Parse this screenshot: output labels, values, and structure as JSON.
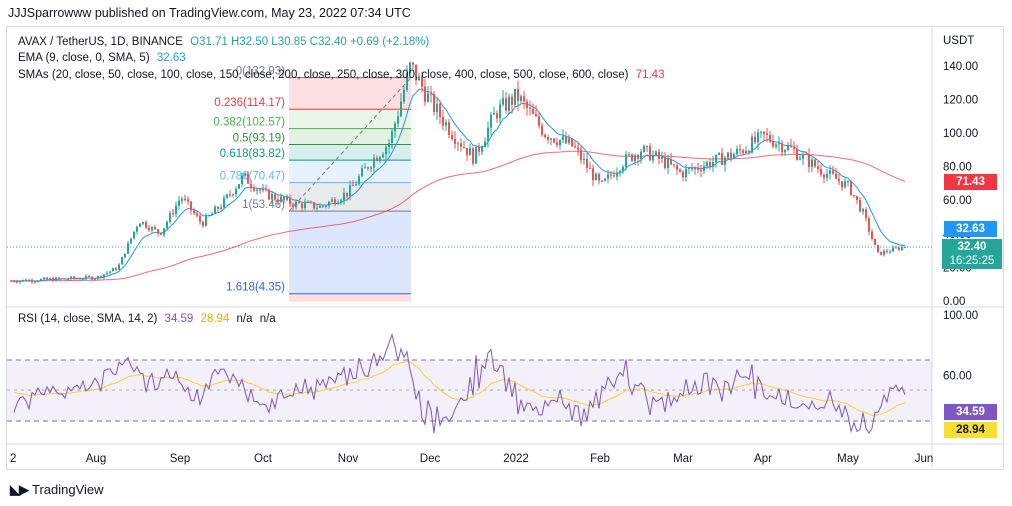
{
  "header": {
    "publisher_text": "JJJSparrowww published on TradingView.com, May 23, 2022 07:34 UTC"
  },
  "legend": {
    "symbol": "AVAX / TetherUS, 1D, BINANCE",
    "ohlc": "O31.71 H32.50 L30.85 C32.40 +0.69 (+2.18%)",
    "ema_label": "EMA (9, close, 0, SMA, 5)",
    "ema_value": "32.63",
    "sma_label": "SMAs (20, close, 50, close, 100, close, 150, close, 200, close, 250, close, 300, close, 400, close, 500, close, 600, close)",
    "sma_value": "71.43",
    "rsi_label": "RSI (14, close, SMA, 14, 2)",
    "rsi_value": "34.59",
    "rsi_sma_value": "28.94",
    "rsi_na1": "n/a",
    "rsi_na2": "n/a"
  },
  "axis": {
    "currency": "USDT",
    "price_ticks": [
      "140.00",
      "120.00",
      "100.00",
      "80.00",
      "60.00",
      "40.00",
      "20.00",
      "0.00"
    ],
    "rsi_ticks": [
      "100.00",
      "60.00"
    ],
    "time_ticks": [
      "2",
      "Aug",
      "Sep",
      "Oct",
      "Nov",
      "Dec",
      "2022",
      "Feb",
      "Mar",
      "Apr",
      "May",
      "Jun"
    ]
  },
  "badges": {
    "sma": "71.43",
    "ema": "32.63",
    "price": "32.40",
    "countdown": "16:25:25",
    "rsi": "34.59",
    "rsi_sma": "28.94"
  },
  "fib_labels": [
    {
      "text": "0(132.93)",
      "color": "#787b86"
    },
    {
      "text": "0.236(114.17)",
      "color": "#f23645"
    },
    {
      "text": "0.382(102.57)",
      "color": "#4caf50"
    },
    {
      "text": "0.5(93.19)",
      "color": "#388e3c"
    },
    {
      "text": "0.618(83.82)",
      "color": "#089981"
    },
    {
      "text": "0.786(70.47)",
      "color": "#64b5f6"
    },
    {
      "text": "1(53.46)",
      "color": "#787b86"
    },
    {
      "text": "1.618(4.35)",
      "color": "#2962ff"
    }
  ],
  "footer": {
    "brand": "TradingView"
  },
  "colors": {
    "up": "#26a69a",
    "down": "#ef5350",
    "ema": "#2196f3",
    "sma": "#f23645",
    "rsi": "#7e57c2",
    "rsi_sma": "#f7d038"
  },
  "chart_data": [
    {
      "type": "candlestick",
      "title": "AVAX / TetherUS, 1D, BINANCE",
      "ylabel": "USDT",
      "ylim": [
        0,
        145
      ],
      "fib_levels": [
        {
          "ratio": 0,
          "price": 132.93
        },
        {
          "ratio": 0.236,
          "price": 114.17
        },
        {
          "ratio": 0.382,
          "price": 102.57
        },
        {
          "ratio": 0.5,
          "price": 93.19
        },
        {
          "ratio": 0.618,
          "price": 83.82
        },
        {
          "ratio": 0.786,
          "price": 70.47
        },
        {
          "ratio": 1,
          "price": 53.46
        },
        {
          "ratio": 1.618,
          "price": 4.35
        }
      ],
      "close_path": [
        [
          "Jul",
          12
        ],
        [
          "Aug",
          14
        ],
        [
          "Aug",
          20
        ],
        [
          "Aug",
          48
        ],
        [
          "Aug",
          40
        ],
        [
          "Sep",
          62
        ],
        [
          "Sep",
          46
        ],
        [
          "Sep",
          58
        ],
        [
          "Sep",
          74
        ],
        [
          "Oct",
          64
        ],
        [
          "Oct",
          58
        ],
        [
          "Oct",
          56
        ],
        [
          "Nov",
          65
        ],
        [
          "Nov",
          82
        ],
        [
          "Nov",
          95
        ],
        [
          "Nov",
          140
        ],
        [
          "Dec",
          118
        ],
        [
          "Dec",
          100
        ],
        [
          "Dec",
          85
        ],
        [
          "Dec",
          112
        ],
        [
          "2022",
          122
        ],
        [
          "2022",
          100
        ],
        [
          "2022",
          92
        ],
        [
          "Feb",
          68
        ],
        [
          "Feb",
          82
        ],
        [
          "Feb",
          90
        ],
        [
          "Feb",
          84
        ],
        [
          "Mar",
          76
        ],
        [
          "Mar",
          82
        ],
        [
          "Mar",
          88
        ],
        [
          "Apr",
          98
        ],
        [
          "Apr",
          90
        ],
        [
          "Apr",
          78
        ],
        [
          "May",
          68
        ],
        [
          "May",
          52
        ],
        [
          "May",
          28
        ],
        [
          "May",
          32.4
        ]
      ],
      "current_close": 32.4,
      "ema9_last": 32.63,
      "sma_last": 71.43
    },
    {
      "type": "line",
      "title": "RSI (14, close, SMA, 14, 2)",
      "ylim": [
        0,
        100
      ],
      "bands": [
        70,
        50,
        30
      ],
      "series": [
        {
          "name": "RSI",
          "last": 34.59
        },
        {
          "name": "SMA",
          "last": 28.94
        }
      ]
    }
  ]
}
